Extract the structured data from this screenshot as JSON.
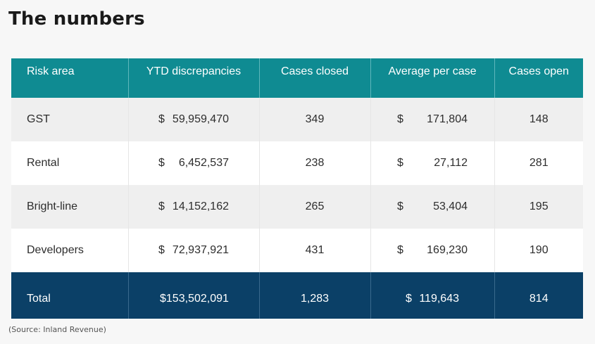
{
  "title": "The numbers",
  "table": {
    "headers": [
      "Risk area",
      "YTD  discrepancies",
      "Cases closed",
      "Average per case",
      "Cases open"
    ],
    "rows": [
      {
        "risk_area": "GST",
        "ytd_currency": "$",
        "ytd_amount": "59,959,470",
        "cases_closed": "349",
        "avg_currency": "$",
        "avg_amount": "171,804",
        "cases_open": "148"
      },
      {
        "risk_area": "Rental",
        "ytd_currency": "$",
        "ytd_amount": "6,452,537",
        "cases_closed": "238",
        "avg_currency": "$",
        "avg_amount": "27,112",
        "cases_open": "281"
      },
      {
        "risk_area": "Bright-line",
        "ytd_currency": "$",
        "ytd_amount": "14,152,162",
        "cases_closed": "265",
        "avg_currency": "$",
        "avg_amount": "53,404",
        "cases_open": "195"
      },
      {
        "risk_area": "Developers",
        "ytd_currency": "$",
        "ytd_amount": "72,937,921",
        "cases_closed": "431",
        "avg_currency": "$",
        "avg_amount": "169,230",
        "cases_open": "190"
      }
    ],
    "total": {
      "label": "Total",
      "ytd_currency": "$",
      "ytd_amount": "153,502,091",
      "cases_closed": "1,283",
      "avg_currency": "$",
      "avg_amount": "119,643",
      "cases_open": "814"
    }
  },
  "source": "(Source: Inland Revenue)",
  "colors": {
    "header_bg": "#0f8b92",
    "total_bg": "#0b4067",
    "stripe_bg": "#efefef"
  }
}
